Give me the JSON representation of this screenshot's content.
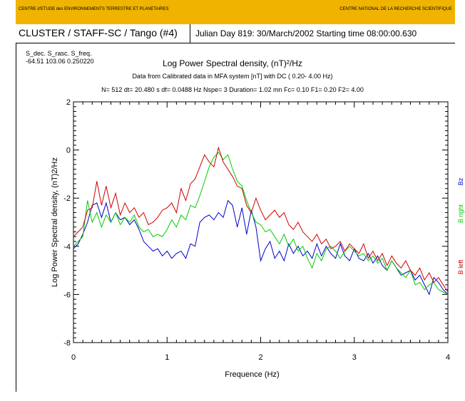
{
  "banner": {
    "left": "CENTRE d'ETUDE des ENVIRONNEMENTS TERRESTRE ET PLANETAIRES",
    "right": "CENTRE NATIONAL DE LA RECHERCHE SCIENTIFIQUE",
    "color": "#f0b400"
  },
  "header": {
    "mission": "CLUSTER / STAFF-SC / Tango  (#4)",
    "day": "Julian Day 819: 30/March/2002    Starting time 08:00:00.630"
  },
  "source": {
    "labels": "S_dec.  S_rasc.    S_freq.",
    "values": "-64.51  103.06    0.250220"
  },
  "chart_data": {
    "type": "line",
    "title": "Log Power Spectral density, (nT)²/Hz",
    "subtitle": "Data from Calibrated data in MFA system [nT] with DC  (  0.20-   4.00 Hz)",
    "params": "N=  512   dt= 20.480 s   df= 0.0488 Hz   Nspe=   3   Duration=   1.02 mn   Fc=    0.10  F1=    0.20  F2=    4.00",
    "xlabel": "Frequence (Hz)",
    "ylabel": "Log Power Spectral density, (nT)2/Hz",
    "xlim": [
      0,
      4
    ],
    "ylim": [
      -8,
      2
    ],
    "xticks": [
      "0",
      "1",
      "2",
      "3",
      "4"
    ],
    "yticks": [
      "2",
      "0",
      "-2",
      "-4",
      "-6",
      "-8"
    ],
    "grid": false,
    "legend_placement": "right, vertical",
    "series": [
      {
        "name": "Bz",
        "color": "#0000cc",
        "x": [
          0.0,
          0.05,
          0.1,
          0.15,
          0.2,
          0.25,
          0.3,
          0.35,
          0.4,
          0.45,
          0.5,
          0.55,
          0.6,
          0.65,
          0.7,
          0.75,
          0.8,
          0.85,
          0.9,
          0.95,
          1.0,
          1.05,
          1.1,
          1.15,
          1.2,
          1.25,
          1.3,
          1.35,
          1.4,
          1.45,
          1.5,
          1.55,
          1.6,
          1.65,
          1.7,
          1.75,
          1.8,
          1.85,
          1.9,
          1.95,
          2.0,
          2.05,
          2.1,
          2.15,
          2.2,
          2.25,
          2.3,
          2.35,
          2.4,
          2.45,
          2.5,
          2.55,
          2.6,
          2.65,
          2.7,
          2.75,
          2.8,
          2.85,
          2.9,
          2.95,
          3.0,
          3.05,
          3.1,
          3.15,
          3.2,
          3.25,
          3.3,
          3.35,
          3.4,
          3.45,
          3.5,
          3.55,
          3.6,
          3.65,
          3.7,
          3.75,
          3.8,
          3.85,
          3.9,
          3.95,
          4.0
        ],
        "y": [
          -4.1,
          -3.9,
          -3.5,
          -3.0,
          -2.3,
          -2.2,
          -2.8,
          -2.2,
          -3.0,
          -2.6,
          -2.9,
          -2.8,
          -3.1,
          -2.9,
          -3.3,
          -3.8,
          -4.0,
          -4.2,
          -4.1,
          -4.4,
          -4.2,
          -4.5,
          -4.3,
          -4.2,
          -4.5,
          -3.9,
          -4.0,
          -3.0,
          -2.8,
          -2.7,
          -2.9,
          -2.6,
          -2.8,
          -2.1,
          -2.3,
          -3.2,
          -2.4,
          -3.5,
          -2.5,
          -3.2,
          -4.6,
          -4.1,
          -3.8,
          -4.5,
          -4.2,
          -4.6,
          -3.9,
          -4.3,
          -4.0,
          -4.4,
          -4.2,
          -4.5,
          -3.9,
          -4.4,
          -4.0,
          -4.3,
          -4.5,
          -3.9,
          -4.4,
          -4.6,
          -4.1,
          -4.5,
          -4.6,
          -4.3,
          -4.7,
          -4.4,
          -4.8,
          -5.0,
          -4.6,
          -4.9,
          -5.2,
          -5.1,
          -5.0,
          -5.4,
          -5.2,
          -5.6,
          -6.0,
          -5.3,
          -5.5,
          -5.8,
          -6.0
        ]
      },
      {
        "name": "B right",
        "color": "#00cc00",
        "x": [
          0.0,
          0.05,
          0.1,
          0.15,
          0.2,
          0.25,
          0.3,
          0.35,
          0.4,
          0.45,
          0.5,
          0.55,
          0.6,
          0.65,
          0.7,
          0.75,
          0.8,
          0.85,
          0.9,
          0.95,
          1.0,
          1.05,
          1.1,
          1.15,
          1.2,
          1.25,
          1.3,
          1.35,
          1.4,
          1.45,
          1.5,
          1.55,
          1.6,
          1.65,
          1.7,
          1.75,
          1.8,
          1.85,
          1.9,
          1.95,
          2.0,
          2.05,
          2.1,
          2.15,
          2.2,
          2.25,
          2.3,
          2.35,
          2.4,
          2.45,
          2.5,
          2.55,
          2.6,
          2.65,
          2.7,
          2.75,
          2.8,
          2.85,
          2.9,
          2.95,
          3.0,
          3.05,
          3.1,
          3.15,
          3.2,
          3.25,
          3.3,
          3.35,
          3.4,
          3.45,
          3.5,
          3.55,
          3.6,
          3.65,
          3.7,
          3.75,
          3.8,
          3.85,
          3.9,
          3.95,
          4.0
        ],
        "y": [
          -4.0,
          -3.8,
          -3.6,
          -2.1,
          -3.0,
          -2.6,
          -3.2,
          -2.7,
          -3.0,
          -2.6,
          -3.1,
          -2.8,
          -3.0,
          -2.7,
          -3.2,
          -3.4,
          -3.3,
          -3.6,
          -3.5,
          -3.6,
          -3.3,
          -2.9,
          -3.2,
          -2.7,
          -2.9,
          -2.3,
          -2.4,
          -1.9,
          -1.3,
          -0.7,
          -0.3,
          -0.1,
          -0.4,
          -0.2,
          -0.8,
          -1.3,
          -1.5,
          -2.1,
          -2.6,
          -3.0,
          -3.1,
          -3.4,
          -3.3,
          -3.6,
          -3.9,
          -3.5,
          -4.0,
          -3.7,
          -4.2,
          -4.0,
          -4.5,
          -4.9,
          -4.3,
          -4.6,
          -4.1,
          -4.0,
          -4.2,
          -4.5,
          -4.2,
          -4.0,
          -4.2,
          -4.4,
          -4.3,
          -4.6,
          -4.4,
          -4.7,
          -4.5,
          -5.0,
          -4.6,
          -4.9,
          -5.1,
          -5.3,
          -5.0,
          -5.6,
          -5.5,
          -5.8,
          -5.6,
          -5.5,
          -5.8,
          -5.9,
          -6.0
        ]
      },
      {
        "name": "B left",
        "color": "#cc0000",
        "x": [
          0.0,
          0.05,
          0.1,
          0.15,
          0.2,
          0.25,
          0.3,
          0.35,
          0.4,
          0.45,
          0.5,
          0.55,
          0.6,
          0.65,
          0.7,
          0.75,
          0.8,
          0.85,
          0.9,
          0.95,
          1.0,
          1.05,
          1.1,
          1.15,
          1.2,
          1.25,
          1.3,
          1.35,
          1.4,
          1.45,
          1.5,
          1.55,
          1.6,
          1.65,
          1.7,
          1.75,
          1.8,
          1.85,
          1.9,
          1.95,
          2.0,
          2.05,
          2.1,
          2.15,
          2.2,
          2.25,
          2.3,
          2.35,
          2.4,
          2.45,
          2.5,
          2.55,
          2.6,
          2.65,
          2.7,
          2.75,
          2.8,
          2.85,
          2.9,
          2.95,
          3.0,
          3.05,
          3.1,
          3.15,
          3.2,
          3.25,
          3.3,
          3.35,
          3.4,
          3.45,
          3.5,
          3.55,
          3.6,
          3.65,
          3.7,
          3.75,
          3.8,
          3.85,
          3.9,
          3.95,
          4.0
        ],
        "y": [
          -3.6,
          -3.4,
          -3.2,
          -2.5,
          -2.4,
          -1.3,
          -2.3,
          -1.5,
          -2.4,
          -1.8,
          -2.7,
          -2.2,
          -2.6,
          -2.4,
          -2.8,
          -2.6,
          -3.1,
          -3.0,
          -2.8,
          -2.5,
          -2.4,
          -2.2,
          -2.6,
          -1.6,
          -2.1,
          -1.4,
          -1.2,
          -0.7,
          -0.2,
          -0.5,
          -0.7,
          0.1,
          -0.5,
          -0.8,
          -1.1,
          -1.5,
          -1.6,
          -2.3,
          -2.6,
          -2.0,
          -2.5,
          -2.9,
          -2.7,
          -2.5,
          -2.8,
          -2.6,
          -3.1,
          -3.3,
          -3.0,
          -3.4,
          -3.6,
          -3.8,
          -3.5,
          -3.9,
          -3.7,
          -4.1,
          -4.0,
          -3.8,
          -4.2,
          -3.9,
          -4.1,
          -4.3,
          -3.9,
          -4.5,
          -4.2,
          -4.6,
          -4.3,
          -4.8,
          -4.4,
          -4.7,
          -4.9,
          -4.6,
          -5.0,
          -5.2,
          -4.9,
          -5.4,
          -5.1,
          -5.5,
          -5.3,
          -5.6,
          -5.9
        ]
      }
    ]
  }
}
